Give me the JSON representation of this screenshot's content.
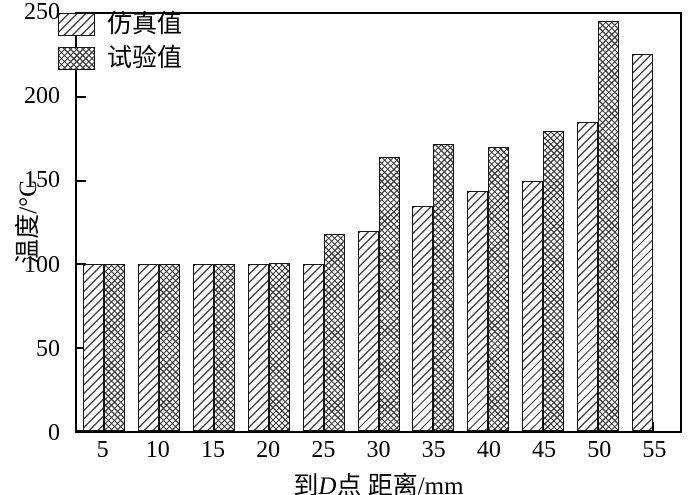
{
  "chart_data": {
    "type": "bar",
    "title": "",
    "xlabel": "到D点 距离/mm",
    "xlabel_parts": {
      "pre": "到",
      "italic": "D",
      "post": "点 距离/mm"
    },
    "ylabel": "温度/°C",
    "categories": [
      "5",
      "10",
      "15",
      "20",
      "25",
      "30",
      "35",
      "40",
      "45",
      "50",
      "55"
    ],
    "series": [
      {
        "name": "仿真值",
        "pattern": "diagonal-hatch",
        "values": [
          100,
          100,
          100,
          100,
          100,
          120,
          135,
          144,
          150,
          185,
          226
        ]
      },
      {
        "name": "试验值",
        "pattern": "cross-hatch",
        "values": [
          100,
          100,
          100,
          101,
          118,
          164,
          172,
          170,
          180,
          246,
          null
        ]
      }
    ],
    "ylim": [
      0,
      250
    ],
    "yticks": [
      0,
      50,
      100,
      150,
      200,
      250
    ],
    "grid": false,
    "legend_position": "top-left",
    "colors": {
      "axis": "#000000",
      "bar_fill": "#ffffff",
      "hatch": "#373737"
    }
  }
}
